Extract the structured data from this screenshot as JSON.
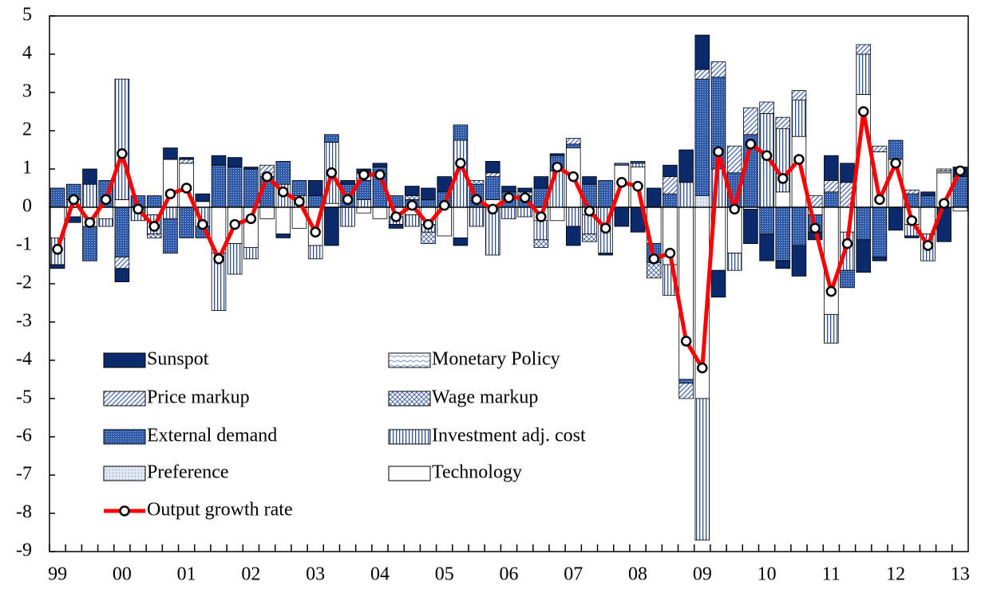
{
  "chart_data": {
    "type": "bar",
    "stacked": true,
    "categories": [
      "99",
      null,
      null,
      null,
      "00",
      null,
      null,
      null,
      "01",
      null,
      null,
      null,
      "02",
      null,
      null,
      null,
      "03",
      null,
      null,
      null,
      "04",
      null,
      null,
      null,
      "05",
      null,
      null,
      null,
      "06",
      null,
      null,
      null,
      "07",
      null,
      null,
      null,
      "08",
      null,
      null,
      null,
      "09",
      null,
      null,
      null,
      "10",
      null,
      null,
      null,
      "11",
      null,
      null,
      null,
      "12",
      null,
      null,
      null,
      "13"
    ],
    "ylim": [
      -9,
      5
    ],
    "yticks": [
      -9,
      -8,
      -7,
      -6,
      -5,
      -4,
      -3,
      -2,
      -1,
      0,
      1,
      2,
      3,
      4,
      5
    ],
    "series": [
      {
        "name": "Sunspot",
        "color": "#0b2a6b",
        "pattern": "solid",
        "values": [
          -0.1,
          -0.15,
          0.4,
          0,
          -0.35,
          0,
          0,
          0.3,
          0.05,
          0.2,
          0.25,
          0.25,
          0.05,
          0,
          -0.1,
          0,
          0.4,
          -1.0,
          0.1,
          0.1,
          0.1,
          -0.1,
          0.25,
          0.3,
          0.4,
          -0.2,
          0,
          0.3,
          0.15,
          0.1,
          0.3,
          0.05,
          -0.5,
          0.2,
          -0.05,
          -0.5,
          -0.65,
          0.5,
          0.3,
          0.85,
          0.9,
          -0.7,
          0,
          -0.9,
          -0.7,
          -0.2,
          -0.8,
          -0.2,
          0.65,
          0.5,
          -0.85,
          -0.1,
          -0.6,
          -0.05,
          0.1,
          -0.9,
          0.25
        ]
      },
      {
        "name": "Monetary Policy",
        "color": "#6f8fc8",
        "pattern": "waves",
        "values": [
          0,
          0,
          0,
          0,
          0,
          0,
          0,
          0,
          0,
          0,
          0,
          0,
          0,
          0,
          0,
          0,
          0,
          0,
          0,
          0,
          0,
          0,
          0,
          0,
          0,
          0,
          0,
          0,
          0,
          0,
          0,
          0,
          0,
          0,
          0,
          0,
          0,
          0,
          0,
          0,
          0,
          0,
          0,
          0,
          0,
          0,
          0,
          0,
          0,
          0,
          0,
          0,
          0,
          0,
          0,
          0,
          0
        ]
      },
      {
        "name": "Price markup",
        "color": "#5b7bb8",
        "pattern": "diagonal",
        "values": [
          0,
          0,
          0,
          0,
          -0.3,
          0,
          0,
          0,
          0.1,
          0,
          0,
          0,
          0,
          0.3,
          0,
          0,
          0,
          0,
          0,
          0.2,
          0,
          0,
          0,
          0,
          0,
          0,
          0,
          0.1,
          0,
          0.1,
          0,
          0,
          0.15,
          0,
          0,
          0,
          0,
          0,
          0.45,
          -0.4,
          0.25,
          0.4,
          0.7,
          0.7,
          0.3,
          0.3,
          0.25,
          0.3,
          0.3,
          0.65,
          0.25,
          0.15,
          0,
          0.1,
          0,
          0.05,
          0
        ]
      },
      {
        "name": "Wage markup",
        "color": "#4a6aa8",
        "pattern": "cross",
        "values": [
          0,
          0,
          0,
          0,
          0,
          0,
          -0.1,
          0,
          0,
          0,
          0,
          0,
          0,
          0,
          0,
          0,
          0,
          0,
          0,
          0,
          0,
          0,
          0.1,
          -0.3,
          0,
          0,
          0.1,
          0,
          0,
          0,
          -0.2,
          0,
          0,
          -0.2,
          0,
          0,
          0,
          -0.4,
          0,
          0,
          0,
          0,
          0,
          0,
          0,
          0,
          0,
          0,
          0,
          0,
          0,
          0,
          0,
          0,
          0,
          0,
          0
        ]
      },
      {
        "name": "External demand",
        "color": "#2f5aa8",
        "pattern": "dense-dots",
        "values": [
          0.5,
          0.4,
          -0.9,
          0.7,
          -1.3,
          0.3,
          0.3,
          -0.9,
          -0.8,
          -0.3,
          1.1,
          1.05,
          1.0,
          0.8,
          0.6,
          0.4,
          0.3,
          0.2,
          0.6,
          0.5,
          1.05,
          0.3,
          0.2,
          0.2,
          0.4,
          0.4,
          0.6,
          0.6,
          0.4,
          0.3,
          0.5,
          0.4,
          0.1,
          0.6,
          0.7,
          0.05,
          0.05,
          -0.5,
          0.35,
          -0.1,
          3.05,
          2.4,
          0.9,
          1.9,
          -0.7,
          -1.4,
          -1.0,
          -0.45,
          0.4,
          -0.45,
          -0.85,
          -1.3,
          0.5,
          0.35,
          0.3,
          0,
          0.8
        ]
      },
      {
        "name": "Investment adj. cost",
        "color": "#2f4f8f",
        "pattern": "vertical",
        "values": [
          -0.7,
          0.2,
          0.6,
          -0.2,
          3.15,
          -0.35,
          -0.5,
          -0.3,
          0,
          -0.5,
          -1.5,
          -0.8,
          -0.3,
          0,
          0.6,
          0.3,
          -0.35,
          1.6,
          -0.5,
          0.2,
          0,
          -0.2,
          -0.3,
          -0.2,
          0,
          1.75,
          -0.5,
          -1.25,
          -0.3,
          -0.25,
          -0.5,
          0.95,
          -0.5,
          -0.5,
          -1.2,
          0,
          0.1,
          0,
          -0.8,
          0.65,
          -3.7,
          1.0,
          -0.45,
          0,
          2.45,
          1.65,
          0.95,
          0,
          -0.75,
          -1.0,
          1.05,
          0,
          0,
          -0.3,
          -0.7,
          0,
          0
        ]
      },
      {
        "name": "Preference",
        "color": "#8fa6d4",
        "pattern": "light-dots",
        "values": [
          0,
          0,
          0,
          0,
          0,
          0,
          0,
          0,
          0,
          0,
          0,
          0,
          0,
          0,
          0,
          0,
          0,
          0,
          0,
          0,
          0,
          0,
          0,
          0,
          0,
          0,
          0,
          0,
          0,
          0,
          0,
          0,
          0,
          0,
          0,
          0,
          0,
          0,
          0,
          0,
          0.3,
          0,
          0,
          0,
          0,
          0,
          0,
          0,
          0,
          0,
          0,
          0,
          0,
          0,
          0,
          0.05,
          0
        ]
      },
      {
        "name": "Technology",
        "color": "#ffffff",
        "pattern": "solid",
        "values": [
          -0.8,
          -0.25,
          -0.5,
          -0.3,
          0.2,
          0,
          -0.2,
          1.25,
          1.15,
          0.15,
          -1.2,
          -0.95,
          -1.05,
          -0.3,
          -0.7,
          -0.55,
          -1.0,
          0.1,
          0,
          -0.15,
          -0.3,
          -0.25,
          -0.2,
          -0.45,
          -0.75,
          -0.8,
          0,
          0.2,
          0,
          0,
          -0.35,
          -0.35,
          1.55,
          -0.2,
          0,
          1.1,
          1.05,
          -0.95,
          -1.5,
          -4.5,
          -5.0,
          -1.65,
          -1.2,
          -0.05,
          0,
          0.4,
          1.85,
          -0.2,
          -2.8,
          -0.65,
          2.95,
          1.45,
          1.25,
          -0.45,
          -0.7,
          0.9,
          -0.1
        ]
      },
      {
        "name": "Output growth rate",
        "type": "line",
        "color": "#ff0000",
        "values": [
          -1.1,
          0.2,
          -0.4,
          0.2,
          1.4,
          -0.05,
          -0.5,
          0.35,
          0.5,
          -0.45,
          -1.35,
          -0.45,
          -0.3,
          0.8,
          0.4,
          0.15,
          -0.65,
          0.9,
          0.2,
          0.85,
          0.85,
          -0.25,
          0.05,
          -0.45,
          0.05,
          1.15,
          0.2,
          -0.05,
          0.25,
          0.25,
          -0.25,
          1.05,
          0.8,
          -0.1,
          -0.55,
          0.65,
          0.55,
          -1.35,
          -1.2,
          -3.5,
          -4.2,
          1.45,
          -0.05,
          1.65,
          1.35,
          0.75,
          1.25,
          -0.55,
          -2.2,
          -0.95,
          2.5,
          0.2,
          1.15,
          -0.35,
          -1.0,
          0.1,
          0.95
        ]
      }
    ]
  }
}
